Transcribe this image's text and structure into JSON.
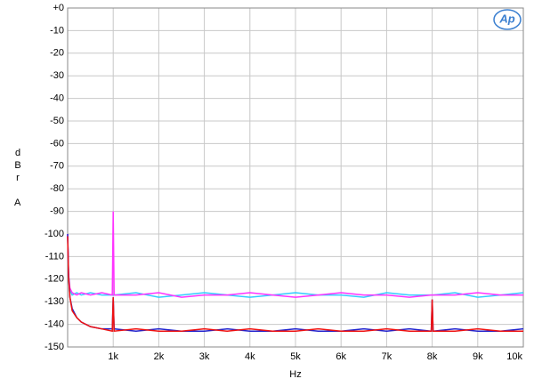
{
  "chart_data": {
    "type": "line",
    "logo": "Ap",
    "x_label": "Hz",
    "y_label": "dBr",
    "y_label_2": "A",
    "x": [
      0,
      20,
      50,
      100,
      200,
      300,
      500,
      750,
      980,
      1000,
      1020,
      1500,
      2000,
      2500,
      3000,
      3500,
      4000,
      4500,
      5000,
      5500,
      6000,
      6500,
      7000,
      7500,
      7980,
      8000,
      8020,
      8500,
      9000,
      9500,
      10000
    ],
    "series": [
      {
        "name": "cyan",
        "color": "#33ccff",
        "values": [
          -101,
          -119,
          -125,
          -127,
          -126,
          -127,
          -126,
          -127,
          -127,
          -127,
          -127,
          -126,
          -128,
          -127,
          -126,
          -127,
          -128,
          -127,
          -126,
          -127,
          -127,
          -128,
          -126,
          -127,
          -127,
          -127,
          -127,
          -126,
          -128,
          -127,
          -126
        ]
      },
      {
        "name": "magenta",
        "color": "#ff33ff",
        "values": [
          -100,
          -118,
          -124,
          -126,
          -127,
          -126,
          -127,
          -126,
          -127,
          -90,
          -127,
          -127,
          -126,
          -128,
          -127,
          -127,
          -126,
          -127,
          -128,
          -127,
          -126,
          -127,
          -127,
          -128,
          -127,
          -127,
          -127,
          -127,
          -126,
          -127,
          -127
        ]
      },
      {
        "name": "blue",
        "color": "#2222cc",
        "values": [
          -100,
          -118,
          -128,
          -133,
          -137,
          -139,
          -141,
          -142,
          -142,
          -128,
          -142,
          -143,
          -142,
          -143,
          -143,
          -142,
          -143,
          -143,
          -142,
          -143,
          -143,
          -142,
          -143,
          -142,
          -143,
          -129,
          -143,
          -142,
          -143,
          -143,
          -142
        ]
      },
      {
        "name": "red",
        "color": "#ee1111",
        "values": [
          -101,
          -119,
          -128,
          -134,
          -137,
          -139,
          -141,
          -142,
          -143,
          -128,
          -143,
          -142,
          -143,
          -143,
          -142,
          -143,
          -142,
          -143,
          -143,
          -142,
          -143,
          -143,
          -142,
          -143,
          -143,
          -129,
          -143,
          -143,
          -142,
          -143,
          -143
        ]
      }
    ],
    "xlim": [
      0,
      10000
    ],
    "xticks": [
      {
        "value": 1000,
        "label": "1k"
      },
      {
        "value": 2000,
        "label": "2k"
      },
      {
        "value": 3000,
        "label": "3k"
      },
      {
        "value": 4000,
        "label": "4k"
      },
      {
        "value": 5000,
        "label": "5k"
      },
      {
        "value": 6000,
        "label": "6k"
      },
      {
        "value": 7000,
        "label": "7k"
      },
      {
        "value": 8000,
        "label": "8k"
      },
      {
        "value": 9000,
        "label": "9k"
      },
      {
        "value": 10000,
        "label": "10k"
      }
    ],
    "ylim": [
      -150,
      0
    ],
    "yticks": [
      {
        "value": 0,
        "label": "+0"
      },
      -10,
      -20,
      -30,
      -40,
      -50,
      -60,
      -70,
      -80,
      -90,
      -100,
      -110,
      -120,
      -130,
      -140,
      -150
    ],
    "grid": true
  }
}
